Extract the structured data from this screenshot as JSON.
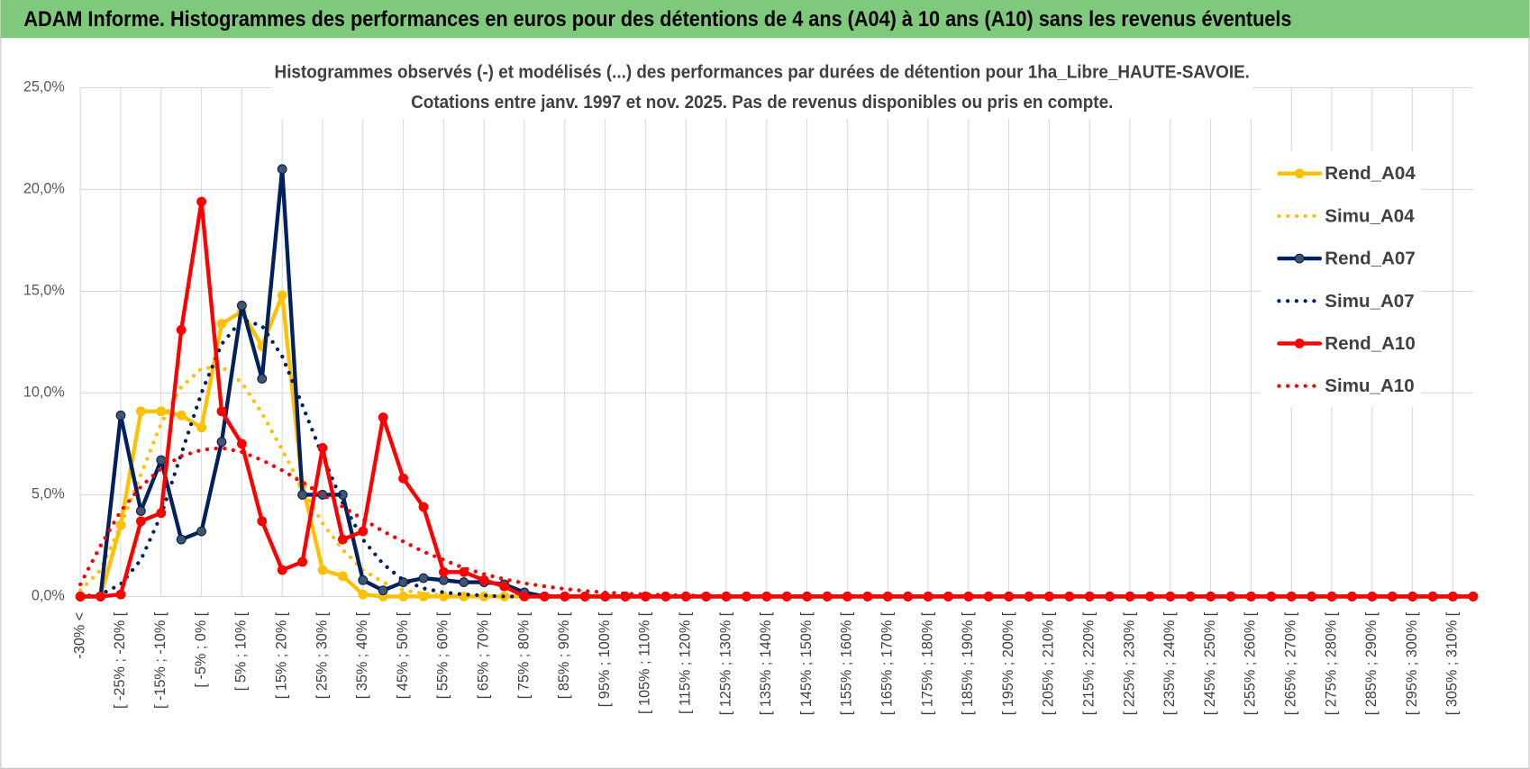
{
  "chart_data": {
    "type": "line",
    "title": "ADAM Informe. Histogrammes des performances en euros pour des détentions de 4 ans (A04) à 10 ans (A10) sans les revenus éventuels",
    "subtitle": [
      "Histogrammes observés (-) et modélisés (...) des performances par durées de détention pour 1ha_Libre_HAUTE-SAVOIE.",
      "Cotations entre janv. 1997 et nov. 2025. Pas de revenus disponibles ou pris en compte."
    ],
    "categories": [
      "-30% <",
      null,
      "[ -25% ; -20% [",
      null,
      "[ -15% ; -10% [",
      null,
      "[ -5% ; 0% [",
      null,
      "[ 5% ; 10% [",
      null,
      "[ 15% ; 20% [",
      null,
      "[ 25% ; 30% [",
      null,
      "[ 35% ; 40% [",
      null,
      "[ 45% ; 50% [",
      null,
      "[ 55% ; 60% [",
      null,
      "[ 65% ; 70% [",
      null,
      "[ 75% ; 80% [",
      null,
      "[ 85% ; 90% [",
      null,
      "[ 95% ; 100% [",
      null,
      "[ 105% ; 110% [",
      null,
      "[ 115% ; 120% [",
      null,
      "[ 125% ; 130% [",
      null,
      "[ 135% ; 140% [",
      null,
      "[ 145% ; 150% [",
      null,
      "[ 155% ; 160% [",
      null,
      "[ 165% ; 170% [",
      null,
      "[ 175% ; 180% [",
      null,
      "[ 185% ; 190% [",
      null,
      "[ 195% ; 200% [",
      null,
      "[ 205% ; 210% [",
      null,
      "[ 215% ; 220% [",
      null,
      "[ 225% ; 230% [",
      null,
      "[ 235% ; 240% [",
      null,
      "[ 245% ; 250% [",
      null,
      "[ 255% ; 260% [",
      null,
      "[ 265% ; 270% [",
      null,
      "[ 275% ; 280% [",
      null,
      "[ 285% ; 290% [",
      null,
      "[ 295% ; 300% [",
      null,
      "[ 305% ; 310% [",
      null
    ],
    "series": [
      {
        "name": "Rend_A04",
        "color": "#ffc000",
        "style": "solid",
        "markers": true,
        "values": [
          0,
          0,
          3.5,
          9.1,
          9.1,
          8.9,
          8.3,
          13.4,
          14.0,
          12.3,
          14.8,
          5.5,
          1.3,
          1.0,
          0.1,
          0,
          0,
          0,
          0,
          0,
          0,
          0,
          0,
          0,
          0,
          0,
          0,
          0,
          0,
          0,
          0,
          0,
          0,
          0,
          0,
          0,
          0,
          0,
          0,
          0,
          0,
          0,
          0,
          0,
          0,
          0,
          0,
          0,
          0,
          0,
          0,
          0,
          0,
          0,
          0,
          0,
          0,
          0,
          0,
          0,
          0,
          0,
          0,
          0,
          0,
          0,
          0,
          0,
          0,
          0
        ]
      },
      {
        "name": "Simu_A04",
        "color": "#ffc000",
        "style": "dotted",
        "markers": false,
        "values": [
          0.3,
          1.3,
          3.5,
          6.0,
          8.5,
          10.3,
          11.2,
          11.3,
          10.5,
          9.0,
          7.2,
          5.3,
          3.6,
          2.3,
          1.3,
          0.7,
          0.3,
          0.15,
          0.05,
          0.02,
          0,
          0,
          0,
          0,
          0,
          0,
          0,
          0,
          0,
          0,
          0,
          0,
          0,
          0,
          0,
          0,
          0,
          0,
          0,
          0,
          0,
          0,
          0,
          0,
          0,
          0,
          0,
          0,
          0,
          0,
          0,
          0,
          0,
          0,
          0,
          0,
          0,
          0,
          0,
          0,
          0,
          0,
          0,
          0,
          0,
          0,
          0,
          0,
          0,
          0
        ]
      },
      {
        "name": "Rend_A07",
        "color": "#002060",
        "style": "solid",
        "markers": true,
        "marker_color": "#44546a",
        "values": [
          0,
          0,
          8.9,
          4.2,
          6.7,
          2.8,
          3.2,
          7.6,
          14.3,
          10.7,
          21.0,
          5.0,
          5.0,
          5.0,
          0.8,
          0.3,
          0.7,
          0.9,
          0.8,
          0.7,
          0.7,
          0.6,
          0.2,
          0,
          0,
          0,
          0,
          0,
          0,
          0,
          0,
          0,
          0,
          0,
          0,
          0,
          0,
          0,
          0,
          0,
          0,
          0,
          0,
          0,
          0,
          0,
          0,
          0,
          0,
          0,
          0,
          0,
          0,
          0,
          0,
          0,
          0,
          0,
          0,
          0,
          0,
          0,
          0,
          0,
          0,
          0,
          0,
          0,
          0,
          0
        ]
      },
      {
        "name": "Simu_A07",
        "color": "#002060",
        "style": "dotted",
        "markers": false,
        "values": [
          0,
          0.1,
          0.6,
          1.8,
          4.0,
          7.0,
          10.0,
          12.4,
          13.6,
          13.3,
          11.8,
          9.4,
          6.9,
          4.6,
          2.8,
          1.6,
          0.8,
          0.4,
          0.2,
          0.1,
          0.05,
          0,
          0,
          0,
          0,
          0,
          0,
          0,
          0,
          0,
          0,
          0,
          0,
          0,
          0,
          0,
          0,
          0,
          0,
          0,
          0,
          0,
          0,
          0,
          0,
          0,
          0,
          0,
          0,
          0,
          0,
          0,
          0,
          0,
          0,
          0,
          0,
          0,
          0,
          0,
          0,
          0,
          0,
          0,
          0,
          0,
          0,
          0,
          0,
          0
        ]
      },
      {
        "name": "Rend_A10",
        "color": "#ff0000",
        "style": "solid",
        "markers": true,
        "values": [
          0,
          0,
          0.1,
          3.7,
          4.1,
          13.1,
          19.4,
          9.1,
          7.5,
          3.7,
          1.3,
          1.7,
          7.3,
          2.8,
          3.2,
          8.8,
          5.8,
          4.4,
          1.2,
          1.2,
          0.8,
          0.5,
          0,
          0,
          0,
          0,
          0,
          0,
          0,
          0,
          0,
          0,
          0,
          0,
          0,
          0,
          0,
          0,
          0,
          0,
          0,
          0,
          0,
          0,
          0,
          0,
          0,
          0,
          0,
          0,
          0,
          0,
          0,
          0,
          0,
          0,
          0,
          0,
          0,
          0,
          0,
          0,
          0,
          0,
          0,
          0,
          0,
          0,
          0,
          0
        ]
      },
      {
        "name": "Simu_A10",
        "color": "#ff0000",
        "style": "dotted",
        "markers": false,
        "values": [
          0.6,
          2.5,
          4.2,
          5.4,
          6.3,
          6.9,
          7.2,
          7.3,
          7.1,
          6.7,
          6.2,
          5.6,
          5.0,
          4.4,
          3.8,
          3.2,
          2.7,
          2.2,
          1.8,
          1.4,
          1.1,
          0.85,
          0.65,
          0.5,
          0.37,
          0.27,
          0.2,
          0.14,
          0.1,
          0.07,
          0.05,
          0.03,
          0.02,
          0.01,
          0,
          0,
          0,
          0,
          0,
          0,
          0,
          0,
          0,
          0,
          0,
          0,
          0,
          0,
          0,
          0,
          0,
          0,
          0,
          0,
          0,
          0,
          0,
          0,
          0,
          0,
          0,
          0,
          0,
          0,
          0,
          0,
          0,
          0,
          0,
          0
        ]
      }
    ],
    "ylim": [
      0,
      25
    ],
    "yticks": [
      {
        "value": 0,
        "label": "0,0%"
      },
      {
        "value": 5,
        "label": "5,0%"
      },
      {
        "value": 10,
        "label": "10,0%"
      },
      {
        "value": 15,
        "label": "15,0%"
      },
      {
        "value": 20,
        "label": "20,0%"
      },
      {
        "value": 25,
        "label": "25,0%"
      }
    ],
    "grid": true,
    "legend": "right"
  }
}
